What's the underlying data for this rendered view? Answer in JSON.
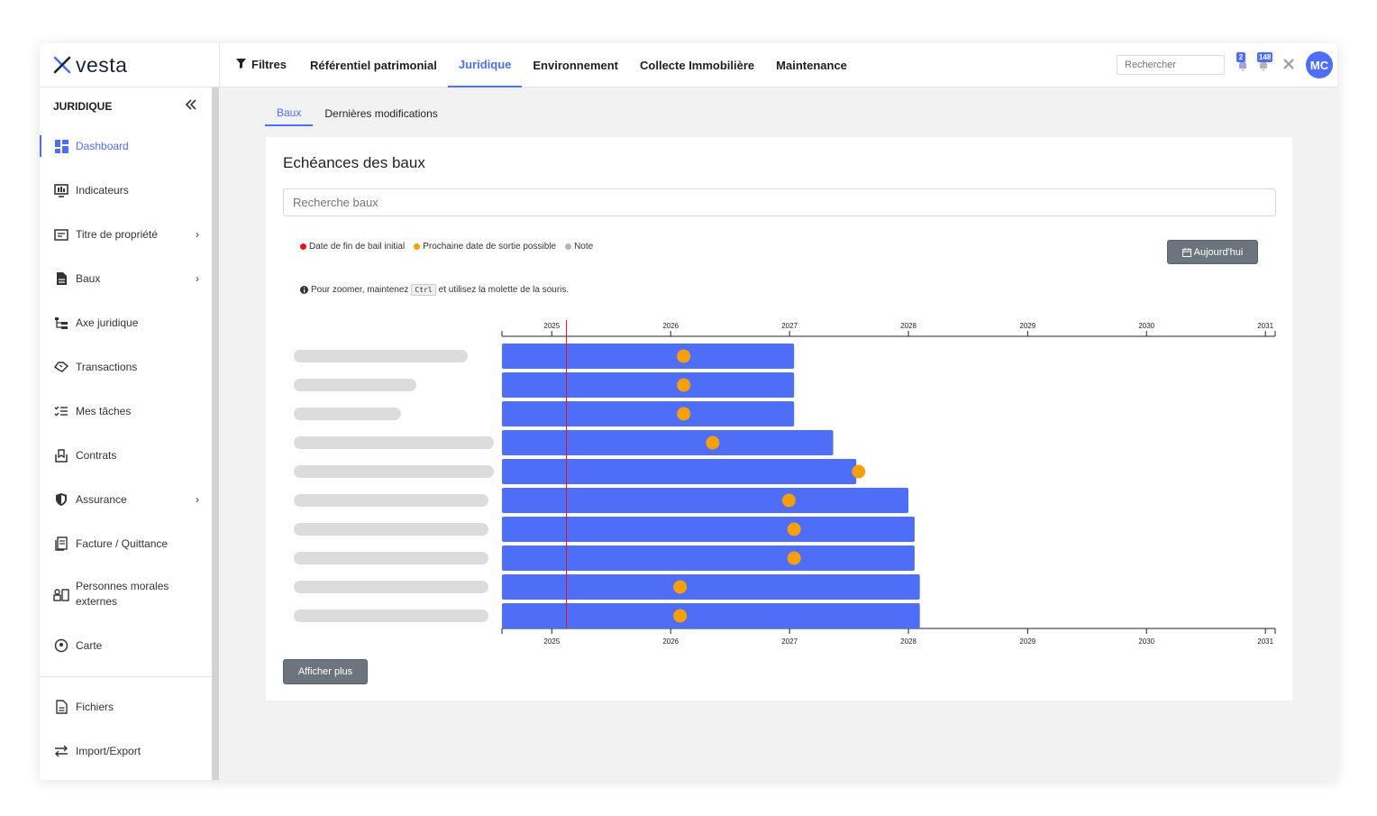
{
  "app": {
    "logo_text": "vesta"
  },
  "topbar": {
    "filters_label": "Filtres",
    "nav": [
      {
        "label": "Référentiel patrimonial",
        "active": false
      },
      {
        "label": "Juridique",
        "active": true
      },
      {
        "label": "Environnement",
        "active": false
      },
      {
        "label": "Collecte Immobilière",
        "active": false
      },
      {
        "label": "Maintenance",
        "active": false
      }
    ],
    "search_placeholder": "Rechercher",
    "badge_1": "2",
    "badge_2": "148",
    "avatar_initials": "MC"
  },
  "sidebar": {
    "title": "JURIDIQUE",
    "items": [
      {
        "label": "Dashboard",
        "icon": "dashboard-icon",
        "active": true,
        "chevron": false
      },
      {
        "label": "Indicateurs",
        "icon": "monitor-icon",
        "active": false,
        "chevron": false
      },
      {
        "label": "Titre de propriété",
        "icon": "id-card-icon",
        "active": false,
        "chevron": true
      },
      {
        "label": "Baux",
        "icon": "document-icon",
        "active": false,
        "chevron": true
      },
      {
        "label": "Axe juridique",
        "icon": "hierarchy-icon",
        "active": false,
        "chevron": false
      },
      {
        "label": "Transactions",
        "icon": "handshake-icon",
        "active": false,
        "chevron": false
      },
      {
        "label": "Mes tâches",
        "icon": "checklist-icon",
        "active": false,
        "chevron": false
      },
      {
        "label": "Contrats",
        "icon": "contract-icon",
        "active": false,
        "chevron": false
      },
      {
        "label": "Assurance",
        "icon": "shield-icon",
        "active": false,
        "chevron": true
      },
      {
        "label": "Facture / Quittance",
        "icon": "invoice-icon",
        "active": false,
        "chevron": false
      },
      {
        "label": "Personnes morales externes",
        "icon": "people-icon",
        "active": false,
        "chevron": false
      },
      {
        "label": "Carte",
        "icon": "map-pin-icon",
        "active": false,
        "chevron": false
      }
    ],
    "footer_items": [
      {
        "label": "Fichiers",
        "icon": "file-icon"
      },
      {
        "label": "Import/Export",
        "icon": "swap-icon"
      }
    ]
  },
  "tabs": [
    {
      "label": "Baux",
      "active": true
    },
    {
      "label": "Dernières modifications",
      "active": false
    }
  ],
  "card": {
    "title": "Echéances des baux",
    "search_placeholder": "Recherche baux",
    "legend": [
      {
        "label": "Date de fin de bail initial",
        "color": "#e8141b"
      },
      {
        "label": "Prochaine date de sortie possible",
        "color": "#f5a00a"
      },
      {
        "label": "Note",
        "color": "#b5b5b5"
      }
    ],
    "today_button": "Aujourd'hui",
    "zoom_prefix": "Pour zoomer, maintenez",
    "zoom_key": "Ctrl",
    "zoom_suffix": "et utilisez la molette de la souris.",
    "more_button": "Afficher plus"
  },
  "chart_data": {
    "type": "timeline",
    "x_axis": {
      "type": "date",
      "min": "2024-08-01",
      "max": "2031-01-31",
      "ticks": [
        "2025",
        "2026",
        "2027",
        "2028",
        "2029",
        "2030",
        "2031"
      ]
    },
    "today_marker": "2025-02-15",
    "colors": {
      "bar": "#4f6ef7",
      "exit_date": "#f5a00a",
      "today_line": "#e8141b",
      "label_placeholder": "#dcdcdc"
    },
    "rows": [
      {
        "start": "2024-08-01",
        "end": "2027-01-15",
        "exit_date": "2026-02-10"
      },
      {
        "start": "2024-08-01",
        "end": "2027-01-15",
        "exit_date": "2026-02-10"
      },
      {
        "start": "2024-08-01",
        "end": "2027-01-15",
        "exit_date": "2026-02-10"
      },
      {
        "start": "2024-08-01",
        "end": "2027-05-15",
        "exit_date": "2026-05-10"
      },
      {
        "start": "2024-08-01",
        "end": "2027-07-25",
        "exit_date": "2027-08-01"
      },
      {
        "start": "2024-08-01",
        "end": "2028-01-01",
        "exit_date": "2026-12-30"
      },
      {
        "start": "2024-08-01",
        "end": "2028-01-20",
        "exit_date": "2027-01-15"
      },
      {
        "start": "2024-08-01",
        "end": "2028-01-20",
        "exit_date": "2027-01-15"
      },
      {
        "start": "2024-08-01",
        "end": "2028-02-05",
        "exit_date": "2026-01-30"
      },
      {
        "start": "2024-08-01",
        "end": "2028-02-05",
        "exit_date": "2026-01-30"
      }
    ]
  }
}
